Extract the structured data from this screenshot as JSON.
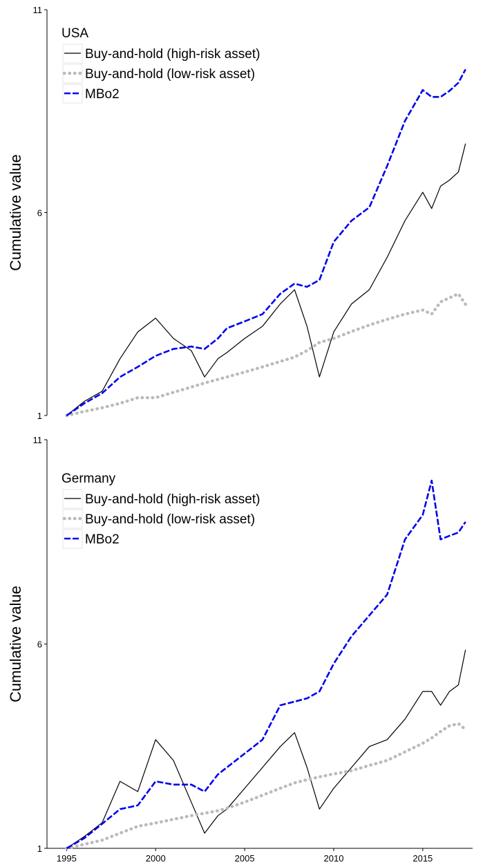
{
  "chart_data": [
    {
      "type": "line",
      "title": "USA",
      "y_label": "Cumulative value",
      "xlim": [
        1993.9,
        2017.8
      ],
      "ylim": [
        1,
        11
      ],
      "yticks": [
        1,
        6,
        11
      ],
      "x": [
        1995,
        1996,
        1997,
        1998,
        1999,
        2000,
        2001,
        2002,
        2002.75,
        2003.5,
        2004,
        2005,
        2006,
        2007,
        2007.8,
        2008.5,
        2009.2,
        2010,
        2011,
        2012,
        2013,
        2014,
        2015,
        2015.5,
        2016,
        2016.5,
        2017,
        2017.4
      ],
      "series": [
        {
          "name": "Buy-and-hold (high-risk asset)",
          "color": "#000000",
          "style": "solid",
          "values": [
            1.0,
            1.35,
            1.6,
            2.4,
            3.06,
            3.4,
            2.9,
            2.6,
            1.95,
            2.4,
            2.55,
            2.9,
            3.2,
            3.75,
            4.1,
            3.2,
            1.95,
            3.06,
            3.75,
            4.1,
            4.9,
            5.8,
            6.5,
            6.1,
            6.65,
            6.8,
            7.0,
            7.7
          ]
        },
        {
          "name": "Buy-and-hold (low-risk asset)",
          "color": "#bbbbbb",
          "style": "dotted",
          "values": [
            1.0,
            1.1,
            1.19,
            1.3,
            1.44,
            1.44,
            1.57,
            1.7,
            1.8,
            1.89,
            1.95,
            2.07,
            2.2,
            2.33,
            2.44,
            2.6,
            2.8,
            2.9,
            3.07,
            3.23,
            3.37,
            3.5,
            3.6,
            3.5,
            3.8,
            3.9,
            4.0,
            3.74
          ]
        },
        {
          "name": "MBo2",
          "color": "#0000ee",
          "style": "dashed",
          "values": [
            1.0,
            1.3,
            1.55,
            1.95,
            2.2,
            2.47,
            2.64,
            2.7,
            2.64,
            2.9,
            3.15,
            3.32,
            3.5,
            4.0,
            4.25,
            4.17,
            4.34,
            5.28,
            5.8,
            6.13,
            7.15,
            8.26,
            9.02,
            8.85,
            8.85,
            9.0,
            9.2,
            9.53
          ]
        }
      ]
    },
    {
      "type": "line",
      "title": "Germany",
      "y_label": "Cumulative value",
      "xlim": [
        1993.9,
        2017.8
      ],
      "ylim": [
        1,
        11
      ],
      "yticks": [
        1,
        6,
        11
      ],
      "xticks": [
        1995,
        2000,
        2005,
        2010,
        2015
      ],
      "x": [
        1995,
        1996,
        1997,
        1998,
        1999,
        2000,
        2001,
        2002,
        2002.75,
        2003.5,
        2004,
        2005,
        2006,
        2007,
        2007.8,
        2008.5,
        2009.2,
        2010,
        2011,
        2012,
        2013,
        2014,
        2015,
        2015.5,
        2016,
        2016.5,
        2017,
        2017.4
      ],
      "series": [
        {
          "name": "Buy-and-hold (high-risk asset)",
          "color": "#000000",
          "style": "solid",
          "values": [
            1.0,
            1.29,
            1.63,
            2.64,
            2.39,
            3.66,
            3.15,
            2.13,
            1.37,
            1.8,
            1.96,
            2.47,
            2.98,
            3.49,
            3.83,
            2.98,
            1.96,
            2.47,
            2.98,
            3.49,
            3.66,
            4.16,
            4.84,
            4.84,
            4.5,
            4.84,
            5.0,
            5.86
          ]
        },
        {
          "name": "Buy-and-hold (low-risk asset)",
          "color": "#bbbbbb",
          "style": "dotted",
          "values": [
            1.0,
            1.1,
            1.2,
            1.37,
            1.54,
            1.62,
            1.71,
            1.8,
            1.86,
            1.92,
            1.98,
            2.13,
            2.3,
            2.47,
            2.6,
            2.68,
            2.75,
            2.82,
            2.9,
            3.03,
            3.15,
            3.36,
            3.57,
            3.7,
            3.86,
            4.0,
            4.05,
            3.91
          ]
        },
        {
          "name": "MBo2",
          "color": "#0000ee",
          "style": "dashed",
          "values": [
            1.0,
            1.25,
            1.6,
            1.96,
            2.05,
            2.64,
            2.56,
            2.56,
            2.39,
            2.81,
            2.98,
            3.32,
            3.66,
            4.5,
            4.59,
            4.67,
            4.84,
            5.52,
            6.19,
            6.7,
            7.21,
            8.56,
            9.16,
            10.0,
            8.56,
            8.65,
            8.73,
            8.99
          ]
        }
      ]
    }
  ]
}
